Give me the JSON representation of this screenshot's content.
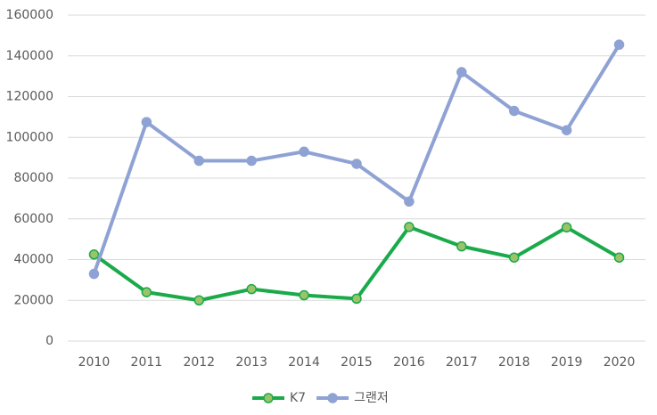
{
  "chart_data": {
    "type": "line",
    "categories": [
      "2010",
      "2011",
      "2012",
      "2013",
      "2014",
      "2015",
      "2016",
      "2017",
      "2018",
      "2019",
      "2020"
    ],
    "series": [
      {
        "name": "K7",
        "color": "#1aaa4a",
        "marker_color": "#9bc36a",
        "values": [
          42500,
          24000,
          20000,
          25500,
          22500,
          20800,
          56000,
          46500,
          41000,
          55800,
          41000
        ]
      },
      {
        "name": "그랜저",
        "color": "#8fa2d4",
        "marker_color": "#8fa2d4",
        "values": [
          33000,
          107500,
          88500,
          88500,
          93000,
          87000,
          68500,
          132000,
          113000,
          103500,
          145500
        ]
      }
    ],
    "ylim": [
      0,
      160000
    ],
    "yticks": [
      0,
      20000,
      40000,
      60000,
      80000,
      100000,
      120000,
      140000,
      160000
    ],
    "grid": true,
    "legend": "bottom"
  }
}
